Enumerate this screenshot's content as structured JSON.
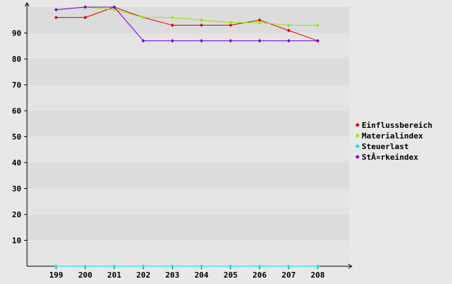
{
  "chart_data": {
    "type": "line",
    "x": [
      "199",
      "200",
      "201",
      "202",
      "203",
      "204",
      "205",
      "206",
      "207",
      "208"
    ],
    "series": [
      {
        "name": "Einflussbereich",
        "color": "#dd0000",
        "values": [
          96,
          96,
          100,
          96,
          93,
          93,
          93,
          95,
          91,
          87
        ]
      },
      {
        "name": "Materialindex",
        "color": "#88ee00",
        "values": [
          99,
          100,
          99,
          96,
          96,
          95,
          94,
          94,
          93,
          93
        ]
      },
      {
        "name": "Steuerlast",
        "color": "#00e5ee",
        "values": [
          0,
          0,
          0,
          0,
          0,
          0,
          0,
          0,
          0,
          0
        ]
      },
      {
        "name": "StÃ¤rkeindex",
        "color": "#7a00dd",
        "values": [
          99,
          100,
          100,
          87,
          87,
          87,
          87,
          87,
          87,
          87
        ]
      }
    ],
    "yticks": [
      10,
      20,
      30,
      40,
      50,
      60,
      70,
      80,
      90
    ],
    "ylim": [
      0,
      100
    ],
    "grid": "horizontal bands",
    "legend_position": "right",
    "title": "",
    "xlabel": "",
    "ylabel": ""
  }
}
